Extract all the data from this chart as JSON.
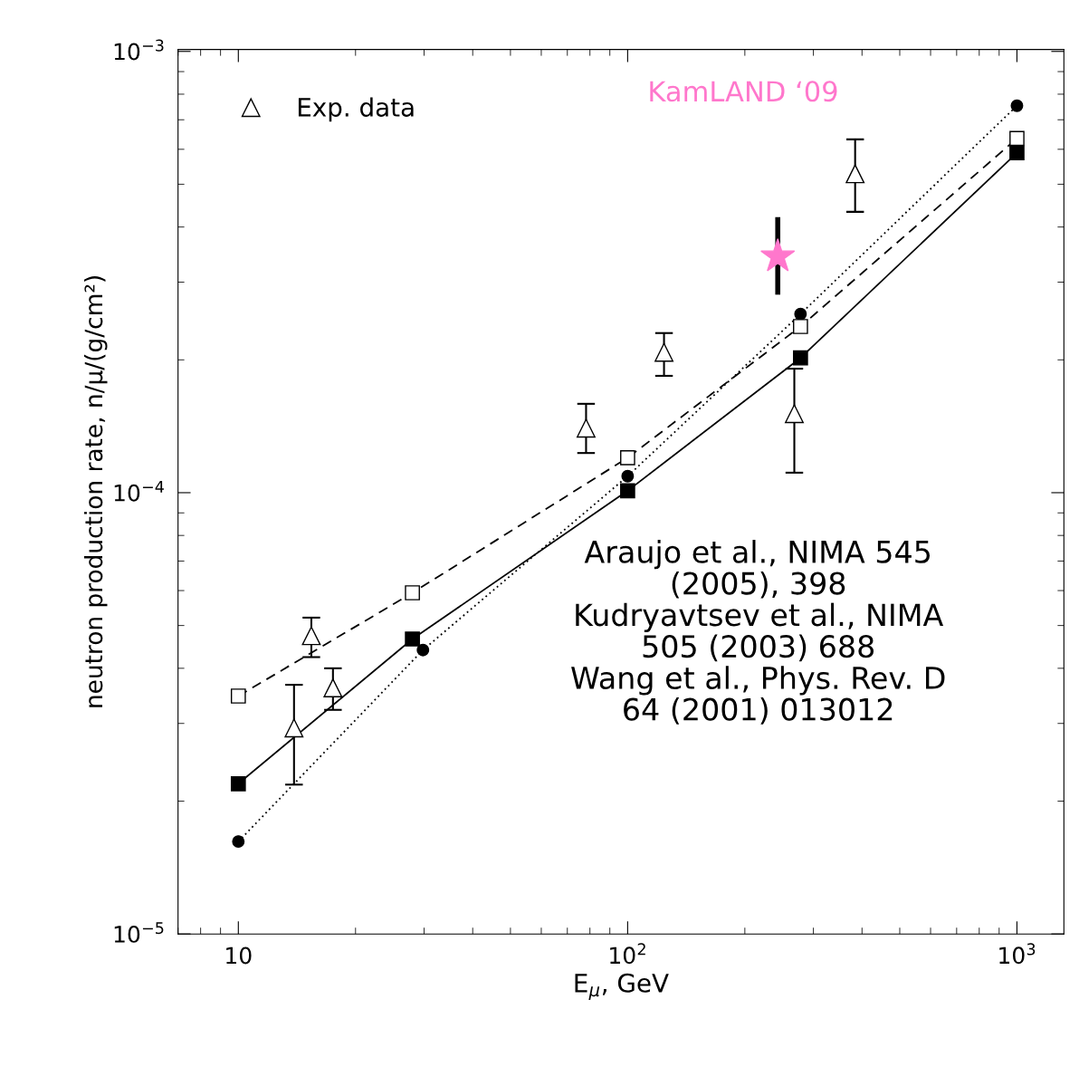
{
  "chart_data": {
    "type": "line",
    "xlabel": "E$_{μ}$, GeV",
    "ylabel": "neutron production rate, n/μ/(g/cm²)",
    "log": "xy",
    "xlim": [
      7,
      1320
    ],
    "ylim": [
      1e-05,
      0.00101
    ],
    "xticks": [
      {
        "value": 10,
        "label": "10"
      },
      {
        "value": 100,
        "label": "10$^{2}$"
      },
      {
        "value": 1000,
        "label": "10$^{3}$"
      }
    ],
    "yticks": [
      {
        "value": 1e-05,
        "label": "10$^{−5}$"
      },
      {
        "value": 0.0001,
        "label": "10$^{−4}$"
      },
      {
        "value": 0.001,
        "label": "10$^{−3}$"
      }
    ],
    "grid": false,
    "legend": "top left",
    "annotations": [
      "Araujo et al., NIMA 545\n(2005), 398\nKudryavtsev et al., NIMA\n505 (2003) 688\nWang et al., Phys. Rev. D\n64 (2001) 013012"
    ],
    "series": [
      {
        "type": "line",
        "color": "#000000",
        "marker": "circle",
        "line_style": "dotted",
        "x": [
          10,
          29.8,
          100,
          278,
          1000
        ],
        "values": [
          1.62e-05,
          4.4e-05,
          0.000109,
          0.000254,
          0.000753
        ]
      },
      {
        "type": "line",
        "color": "#000000",
        "marker": "square",
        "line_style": "dashed",
        "x": [
          10,
          28,
          100,
          278,
          1000
        ],
        "values": [
          3.46e-05,
          5.93e-05,
          0.00012,
          0.000238,
          0.000635
        ]
      },
      {
        "type": "line",
        "color": "#000000",
        "marker": "square",
        "line_style": "solid",
        "x": [
          10,
          28,
          100,
          278,
          1000
        ],
        "values": [
          2.19e-05,
          4.66e-05,
          0.000101,
          0.000202,
          0.000589
        ]
      },
      {
        "type": "scatter",
        "name": "Exp. data",
        "color": "#000000",
        "marker": "triangle",
        "x": [
          13.9,
          15.4,
          17.5,
          78.2,
          124,
          268,
          384
        ],
        "values": [
          2.93e-05,
          4.74e-05,
          3.61e-05,
          0.00014,
          0.000208,
          0.000151,
          0.000528
        ],
        "errors": [
          [
            2.18e-05,
            3.67e-05
          ],
          [
            4.24e-05,
            5.21e-05
          ],
          [
            3.22e-05,
            4e-05
          ],
          [
            0.000123,
            0.000159
          ],
          [
            0.000184,
            0.00023
          ],
          [
            0.000111,
            0.000191
          ],
          [
            0.000433,
            0.000632
          ]
        ]
      },
      {
        "type": "scatter",
        "name": "KamLAND ‘09",
        "color": "#ff77cc",
        "marker": "star",
        "x": [
          243
        ],
        "values": [
          0.000343
        ],
        "errors": [
          [
            0.000281,
            0.000421
          ]
        ]
      }
    ]
  }
}
